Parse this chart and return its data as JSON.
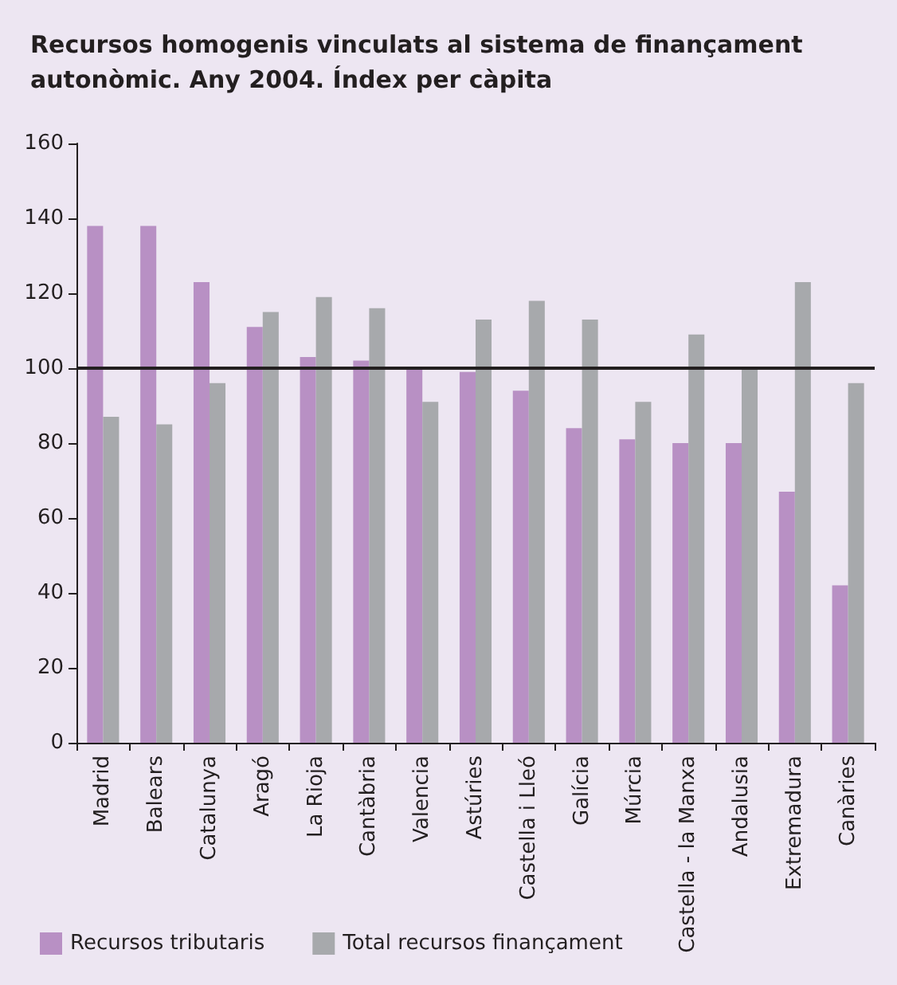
{
  "chart_data": {
    "type": "bar",
    "title": "Recursos homogenis vinculats al sistema de finançament autonòmic. Any 2004. Índex per càpita",
    "categories": [
      "Madrid",
      "Balears",
      "Catalunya",
      "Aragó",
      "La Rioja",
      "Cantàbria",
      "Valencia",
      "Astúries",
      "Castella i Lleó",
      "Galícia",
      "Múrcia",
      "Castella - la Manxa",
      "Andalusia",
      "Extremadura",
      "Canàries"
    ],
    "series": [
      {
        "name": "Recursos tributaris",
        "color": "#b890c4",
        "values": [
          138,
          138,
          123,
          111,
          103,
          102,
          100,
          99,
          94,
          84,
          81,
          80,
          80,
          67,
          42
        ]
      },
      {
        "name": "Total recursos finançament",
        "color": "#a7a9ac",
        "values": [
          87,
          85,
          96,
          115,
          119,
          116,
          91,
          113,
          118,
          113,
          91,
          109,
          100,
          123,
          96
        ]
      }
    ],
    "ylim": [
      0,
      160
    ],
    "yticks": [
      0,
      20,
      40,
      60,
      80,
      100,
      120,
      140,
      160
    ],
    "grid": false,
    "legend": "bottom",
    "ref_lines": [
      {
        "axis": "y",
        "value": 100,
        "color": "#231f20"
      }
    ]
  }
}
